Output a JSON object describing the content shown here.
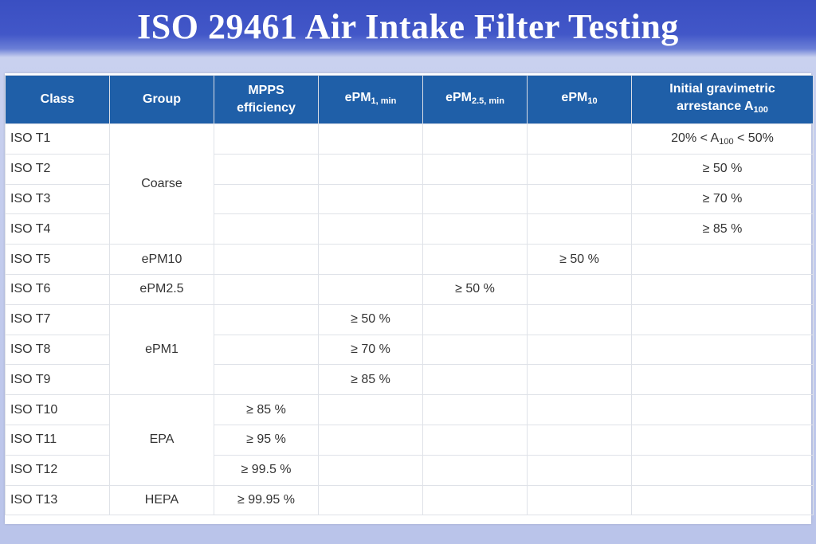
{
  "title": "ISO 29461 Air Intake Filter Testing",
  "headers": {
    "class": "Class",
    "group": "Group",
    "mpps_line1": "MPPS",
    "mpps_line2": "efficiency",
    "epm1_base": "ePM",
    "epm1_sub": "1, min",
    "epm25_base": "ePM",
    "epm25_sub": "2.5, min",
    "epm10_base": "ePM",
    "epm10_sub": "10",
    "arrest_line1": "Initial gravimetric",
    "arrest_line2": "arrestance A",
    "arrest_sub": "100"
  },
  "groups": {
    "coarse": "Coarse",
    "epm10": "ePM10",
    "epm25": "ePM2.5",
    "epm1": "ePM1",
    "epa": "EPA",
    "hepa": "HEPA"
  },
  "rows": [
    {
      "class": "ISO T1",
      "arrest_pre": "20% < A",
      "arrest_sub": "100",
      "arrest_post": " < 50%"
    },
    {
      "class": "ISO T2",
      "arrest": "≥ 50 %"
    },
    {
      "class": "ISO T3",
      "arrest": "≥ 70 %"
    },
    {
      "class": "ISO T4",
      "arrest": "≥ 85 %"
    },
    {
      "class": "ISO T5",
      "epm10": "≥ 50 %"
    },
    {
      "class": "ISO T6",
      "epm25": "≥ 50 %"
    },
    {
      "class": "ISO T7",
      "epm1": "≥ 50 %"
    },
    {
      "class": "ISO T8",
      "epm1": "≥ 70 %"
    },
    {
      "class": "ISO T9",
      "epm1": "≥ 85 %"
    },
    {
      "class": "ISO T10",
      "mpps": "≥ 85 %"
    },
    {
      "class": "ISO T11",
      "mpps": "≥ 95 %"
    },
    {
      "class": "ISO T12",
      "mpps": "≥ 99.5 %"
    },
    {
      "class": "ISO T13",
      "mpps": "≥ 99.95 %"
    }
  ]
}
